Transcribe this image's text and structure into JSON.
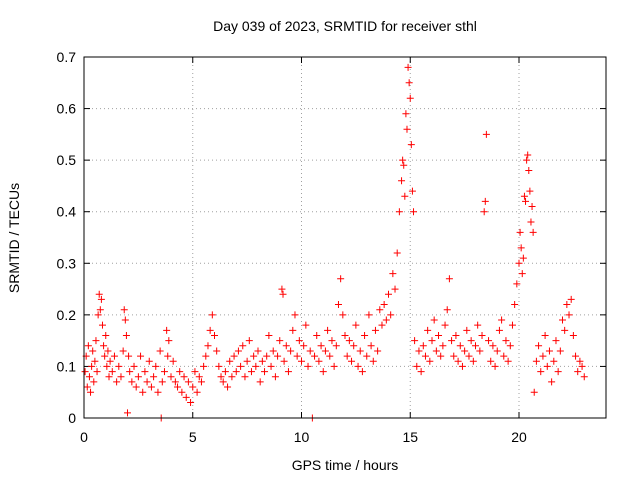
{
  "chart_data": {
    "type": "scatter",
    "title": "Day 039 of 2023, SRMTID for receiver sthl",
    "xlabel": "GPS time / hours",
    "ylabel": "SRMTID / TECUs",
    "xlim": [
      0,
      24
    ],
    "ylim": [
      0,
      0.7
    ],
    "xticks": [
      0,
      5,
      10,
      15,
      20
    ],
    "yticks": [
      0,
      0.1,
      0.2,
      0.3,
      0.4,
      0.5,
      0.6,
      0.7
    ],
    "ytick_labels": [
      "0",
      "0.1",
      "0.2",
      "0.3",
      "0.4",
      "0.5",
      "0.6",
      "0.7"
    ],
    "grid": true,
    "marker": "+",
    "color": "#ff0000",
    "series": [
      {
        "name": "SRMTID",
        "points": [
          [
            0.05,
            0.09
          ],
          [
            0.1,
            0.12
          ],
          [
            0.15,
            0.06
          ],
          [
            0.2,
            0.14
          ],
          [
            0.25,
            0.08
          ],
          [
            0.3,
            0.05
          ],
          [
            0.35,
            0.1
          ],
          [
            0.4,
            0.13
          ],
          [
            0.45,
            0.07
          ],
          [
            0.5,
            0.11
          ],
          [
            0.55,
            0.15
          ],
          [
            0.6,
            0.09
          ],
          [
            0.65,
            0.2
          ],
          [
            0.7,
            0.24
          ],
          [
            0.75,
            0.21
          ],
          [
            0.8,
            0.23
          ],
          [
            0.85,
            0.18
          ],
          [
            0.9,
            0.14
          ],
          [
            0.95,
            0.12
          ],
          [
            1.0,
            0.16
          ],
          [
            1.05,
            0.1
          ],
          [
            1.1,
            0.13
          ],
          [
            1.15,
            0.08
          ],
          [
            1.2,
            0.11
          ],
          [
            1.3,
            0.09
          ],
          [
            1.4,
            0.12
          ],
          [
            1.5,
            0.07
          ],
          [
            1.6,
            0.1
          ],
          [
            1.7,
            0.08
          ],
          [
            1.8,
            0.13
          ],
          [
            1.85,
            0.21
          ],
          [
            1.9,
            0.19
          ],
          [
            1.95,
            0.16
          ],
          [
            2.0,
            0.01
          ],
          [
            2.05,
            0.12
          ],
          [
            2.1,
            0.09
          ],
          [
            2.2,
            0.07
          ],
          [
            2.3,
            0.1
          ],
          [
            2.4,
            0.06
          ],
          [
            2.5,
            0.08
          ],
          [
            2.6,
            0.12
          ],
          [
            2.7,
            0.05
          ],
          [
            2.8,
            0.09
          ],
          [
            2.9,
            0.07
          ],
          [
            3.0,
            0.11
          ],
          [
            3.1,
            0.06
          ],
          [
            3.2,
            0.08
          ],
          [
            3.3,
            0.1
          ],
          [
            3.4,
            0.05
          ],
          [
            3.5,
            0.13
          ],
          [
            3.55,
            0.0
          ],
          [
            3.6,
            0.07
          ],
          [
            3.7,
            0.09
          ],
          [
            3.8,
            0.17
          ],
          [
            3.85,
            0.12
          ],
          [
            3.9,
            0.15
          ],
          [
            4.0,
            0.08
          ],
          [
            4.1,
            0.11
          ],
          [
            4.2,
            0.07
          ],
          [
            4.3,
            0.06
          ],
          [
            4.4,
            0.09
          ],
          [
            4.5,
            0.05
          ],
          [
            4.6,
            0.08
          ],
          [
            4.7,
            0.04
          ],
          [
            4.8,
            0.07
          ],
          [
            4.9,
            0.03
          ],
          [
            5.0,
            0.06
          ],
          [
            5.1,
            0.09
          ],
          [
            5.2,
            0.05
          ],
          [
            5.3,
            0.08
          ],
          [
            5.4,
            0.07
          ],
          [
            5.5,
            0.1
          ],
          [
            5.6,
            0.12
          ],
          [
            5.7,
            0.14
          ],
          [
            5.8,
            0.17
          ],
          [
            5.9,
            0.2
          ],
          [
            6.0,
            0.16
          ],
          [
            6.1,
            0.13
          ],
          [
            6.2,
            0.1
          ],
          [
            6.3,
            0.08
          ],
          [
            6.4,
            0.07
          ],
          [
            6.5,
            0.09
          ],
          [
            6.6,
            0.06
          ],
          [
            6.7,
            0.11
          ],
          [
            6.8,
            0.08
          ],
          [
            6.9,
            0.12
          ],
          [
            7.0,
            0.09
          ],
          [
            7.1,
            0.13
          ],
          [
            7.2,
            0.1
          ],
          [
            7.3,
            0.14
          ],
          [
            7.4,
            0.08
          ],
          [
            7.5,
            0.11
          ],
          [
            7.6,
            0.15
          ],
          [
            7.7,
            0.09
          ],
          [
            7.8,
            0.12
          ],
          [
            7.9,
            0.1
          ],
          [
            8.0,
            0.13
          ],
          [
            8.1,
            0.07
          ],
          [
            8.2,
            0.11
          ],
          [
            8.3,
            0.09
          ],
          [
            8.4,
            0.12
          ],
          [
            8.5,
            0.16
          ],
          [
            8.6,
            0.1
          ],
          [
            8.7,
            0.13
          ],
          [
            8.8,
            0.08
          ],
          [
            8.9,
            0.12
          ],
          [
            9.0,
            0.15
          ],
          [
            9.1,
            0.25
          ],
          [
            9.15,
            0.24
          ],
          [
            9.2,
            0.11
          ],
          [
            9.3,
            0.14
          ],
          [
            9.4,
            0.09
          ],
          [
            9.5,
            0.13
          ],
          [
            9.6,
            0.17
          ],
          [
            9.7,
            0.2
          ],
          [
            9.8,
            0.12
          ],
          [
            9.9,
            0.15
          ],
          [
            10.0,
            0.11
          ],
          [
            10.1,
            0.14
          ],
          [
            10.2,
            0.18
          ],
          [
            10.3,
            0.1
          ],
          [
            10.4,
            0.13
          ],
          [
            10.5,
            0.0
          ],
          [
            10.6,
            0.12
          ],
          [
            10.7,
            0.16
          ],
          [
            10.8,
            0.11
          ],
          [
            10.9,
            0.14
          ],
          [
            11.0,
            0.09
          ],
          [
            11.1,
            0.13
          ],
          [
            11.2,
            0.17
          ],
          [
            11.3,
            0.12
          ],
          [
            11.4,
            0.15
          ],
          [
            11.5,
            0.1
          ],
          [
            11.6,
            0.14
          ],
          [
            11.7,
            0.22
          ],
          [
            11.8,
            0.27
          ],
          [
            11.9,
            0.2
          ],
          [
            12.0,
            0.16
          ],
          [
            12.1,
            0.12
          ],
          [
            12.2,
            0.15
          ],
          [
            12.3,
            0.11
          ],
          [
            12.4,
            0.14
          ],
          [
            12.5,
            0.18
          ],
          [
            12.6,
            0.1
          ],
          [
            12.7,
            0.13
          ],
          [
            12.8,
            0.09
          ],
          [
            12.9,
            0.16
          ],
          [
            13.0,
            0.12
          ],
          [
            13.1,
            0.2
          ],
          [
            13.2,
            0.14
          ],
          [
            13.3,
            0.11
          ],
          [
            13.4,
            0.17
          ],
          [
            13.5,
            0.13
          ],
          [
            13.6,
            0.21
          ],
          [
            13.7,
            0.18
          ],
          [
            13.8,
            0.22
          ],
          [
            13.9,
            0.19
          ],
          [
            14.0,
            0.24
          ],
          [
            14.1,
            0.2
          ],
          [
            14.2,
            0.28
          ],
          [
            14.3,
            0.25
          ],
          [
            14.4,
            0.32
          ],
          [
            14.5,
            0.4
          ],
          [
            14.6,
            0.46
          ],
          [
            14.65,
            0.5
          ],
          [
            14.7,
            0.49
          ],
          [
            14.75,
            0.43
          ],
          [
            14.8,
            0.59
          ],
          [
            14.85,
            0.56
          ],
          [
            14.9,
            0.68
          ],
          [
            14.95,
            0.65
          ],
          [
            15.0,
            0.62
          ],
          [
            15.05,
            0.53
          ],
          [
            15.1,
            0.44
          ],
          [
            15.15,
            0.4
          ],
          [
            15.2,
            0.15
          ],
          [
            15.3,
            0.1
          ],
          [
            15.4,
            0.13
          ],
          [
            15.5,
            0.09
          ],
          [
            15.6,
            0.14
          ],
          [
            15.7,
            0.12
          ],
          [
            15.8,
            0.17
          ],
          [
            15.9,
            0.11
          ],
          [
            16.0,
            0.15
          ],
          [
            16.1,
            0.19
          ],
          [
            16.2,
            0.13
          ],
          [
            16.3,
            0.16
          ],
          [
            16.4,
            0.12
          ],
          [
            16.5,
            0.14
          ],
          [
            16.6,
            0.18
          ],
          [
            16.7,
            0.21
          ],
          [
            16.8,
            0.27
          ],
          [
            16.9,
            0.15
          ],
          [
            17.0,
            0.12
          ],
          [
            17.1,
            0.16
          ],
          [
            17.2,
            0.11
          ],
          [
            17.3,
            0.14
          ],
          [
            17.4,
            0.1
          ],
          [
            17.5,
            0.13
          ],
          [
            17.6,
            0.17
          ],
          [
            17.7,
            0.12
          ],
          [
            17.8,
            0.15
          ],
          [
            17.9,
            0.11
          ],
          [
            18.0,
            0.14
          ],
          [
            18.1,
            0.18
          ],
          [
            18.2,
            0.13
          ],
          [
            18.3,
            0.16
          ],
          [
            18.4,
            0.4
          ],
          [
            18.45,
            0.42
          ],
          [
            18.5,
            0.55
          ],
          [
            18.6,
            0.15
          ],
          [
            18.7,
            0.11
          ],
          [
            18.8,
            0.14
          ],
          [
            18.9,
            0.1
          ],
          [
            19.0,
            0.13
          ],
          [
            19.1,
            0.17
          ],
          [
            19.2,
            0.19
          ],
          [
            19.3,
            0.12
          ],
          [
            19.4,
            0.15
          ],
          [
            19.5,
            0.11
          ],
          [
            19.6,
            0.14
          ],
          [
            19.7,
            0.18
          ],
          [
            19.8,
            0.22
          ],
          [
            19.9,
            0.26
          ],
          [
            20.0,
            0.3
          ],
          [
            20.05,
            0.36
          ],
          [
            20.1,
            0.33
          ],
          [
            20.15,
            0.28
          ],
          [
            20.2,
            0.31
          ],
          [
            20.25,
            0.43
          ],
          [
            20.3,
            0.42
          ],
          [
            20.35,
            0.5
          ],
          [
            20.4,
            0.51
          ],
          [
            20.45,
            0.48
          ],
          [
            20.5,
            0.44
          ],
          [
            20.55,
            0.38
          ],
          [
            20.6,
            0.41
          ],
          [
            20.65,
            0.36
          ],
          [
            20.7,
            0.05
          ],
          [
            20.8,
            0.11
          ],
          [
            20.9,
            0.14
          ],
          [
            21.0,
            0.09
          ],
          [
            21.1,
            0.12
          ],
          [
            21.2,
            0.16
          ],
          [
            21.3,
            0.1
          ],
          [
            21.4,
            0.13
          ],
          [
            21.5,
            0.07
          ],
          [
            21.6,
            0.11
          ],
          [
            21.7,
            0.15
          ],
          [
            21.8,
            0.09
          ],
          [
            21.9,
            0.13
          ],
          [
            22.0,
            0.19
          ],
          [
            22.1,
            0.17
          ],
          [
            22.2,
            0.22
          ],
          [
            22.3,
            0.2
          ],
          [
            22.4,
            0.23
          ],
          [
            22.5,
            0.16
          ],
          [
            22.6,
            0.12
          ],
          [
            22.7,
            0.09
          ],
          [
            22.8,
            0.11
          ],
          [
            22.9,
            0.1
          ],
          [
            23.0,
            0.08
          ]
        ]
      }
    ]
  }
}
